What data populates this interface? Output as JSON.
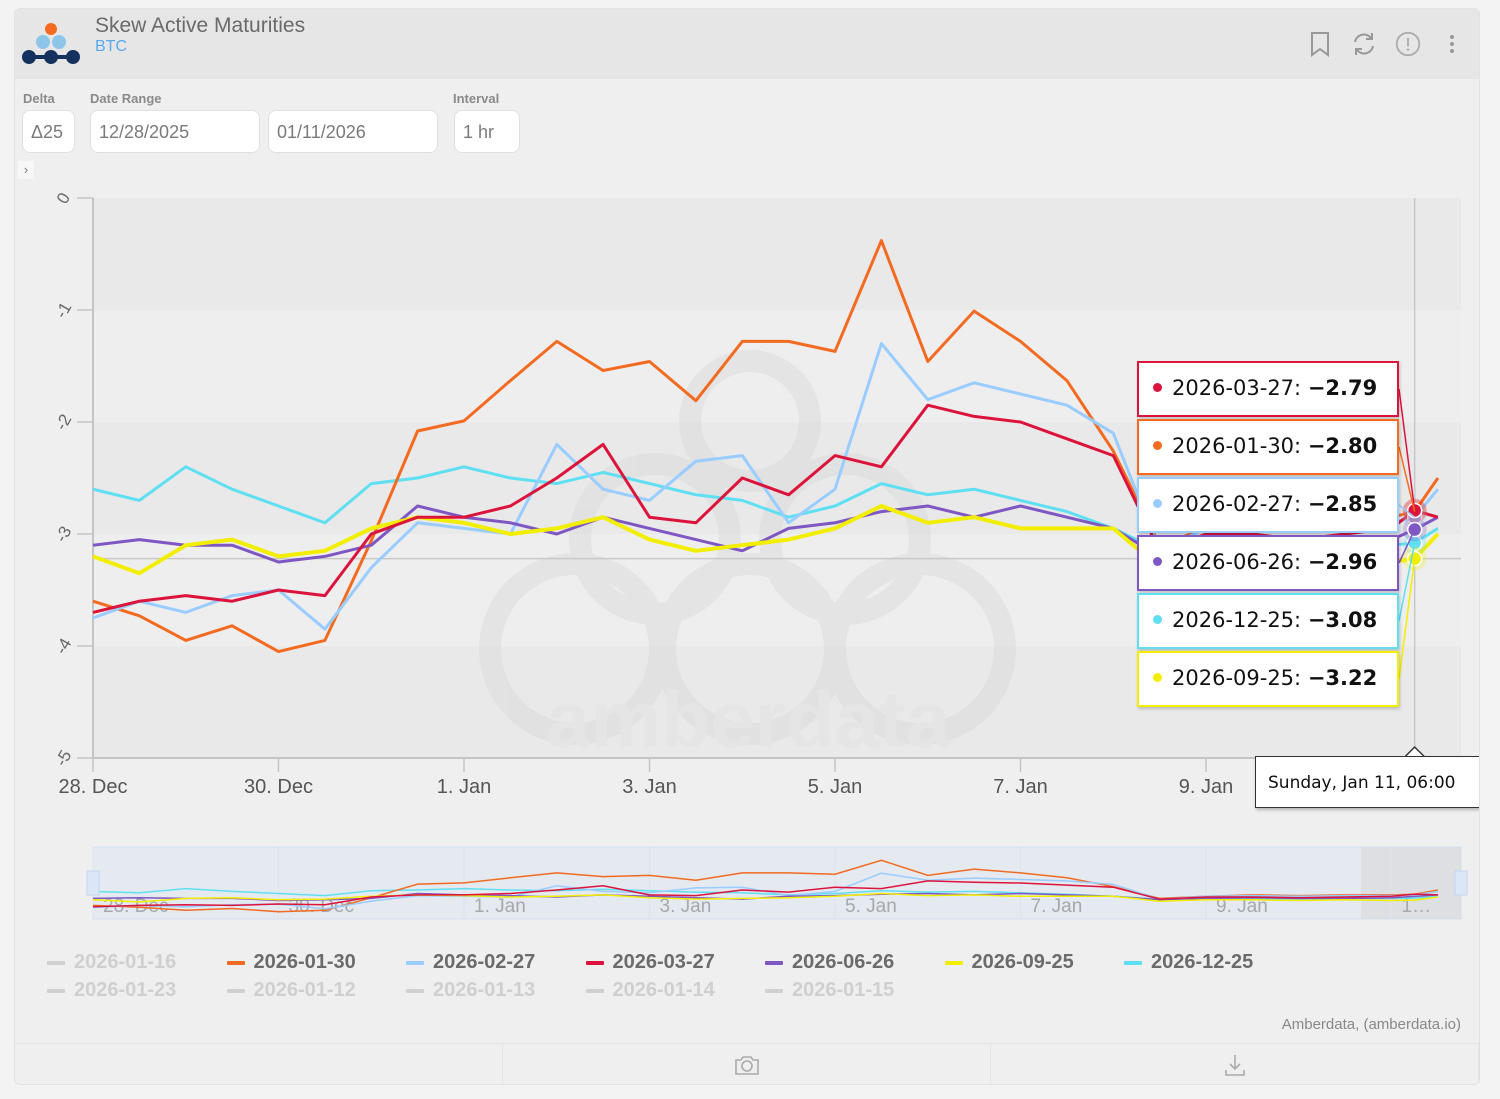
{
  "header": {
    "title": "Skew Active Maturities",
    "subtitle": "BTC",
    "icons": [
      "bookmark-icon",
      "refresh-icon",
      "alert-icon",
      "more-vertical-icon"
    ]
  },
  "controls": {
    "delta_label": "Delta",
    "delta_value": "Δ25",
    "date_range_label": "Date Range",
    "start_date": "12/28/2025",
    "end_date": "01/11/2026",
    "interval_label": "Interval",
    "interval_value": "1 hr",
    "expand": "›"
  },
  "watermark": "amberdata",
  "chart_data": {
    "type": "line",
    "ylim": [
      -5,
      0
    ],
    "yticks": [
      "0",
      "-1",
      "-2",
      "-3",
      "-4",
      "-5"
    ],
    "xticks": [
      {
        "label": "28. Dec",
        "t": "2025-12-28 00:00"
      },
      {
        "label": "30. Dec",
        "t": "2025-12-30 00:00"
      },
      {
        "label": "1. Jan",
        "t": "2026-01-01 00:00"
      },
      {
        "label": "3. Jan",
        "t": "2026-01-03 00:00"
      },
      {
        "label": "5. Jan",
        "t": "2026-01-05 00:00"
      },
      {
        "label": "7. Jan",
        "t": "2026-01-07 00:00"
      },
      {
        "label": "9. Jan",
        "t": "2026-01-09 00:00"
      }
    ],
    "navigator_xticks": [
      "28. Dec",
      "30. Dec",
      "1. Jan",
      "3. Jan",
      "5. Jan",
      "7. Jan",
      "9. Jan",
      "1…"
    ],
    "x": [
      "2025-12-28 00:00",
      "2025-12-28 12:00",
      "2025-12-29 00:00",
      "2025-12-29 12:00",
      "2025-12-30 00:00",
      "2025-12-30 12:00",
      "2025-12-31 00:00",
      "2025-12-31 12:00",
      "2026-01-01 00:00",
      "2026-01-01 12:00",
      "2026-01-02 00:00",
      "2026-01-02 12:00",
      "2026-01-03 00:00",
      "2026-01-03 12:00",
      "2026-01-04 00:00",
      "2026-01-04 12:00",
      "2026-01-05 00:00",
      "2026-01-05 12:00",
      "2026-01-06 00:00",
      "2026-01-06 12:00",
      "2026-01-07 00:00",
      "2026-01-07 12:00",
      "2026-01-08 00:00",
      "2026-01-08 12:00",
      "2026-01-09 00:00",
      "2026-01-09 12:00",
      "2026-01-10 00:00",
      "2026-01-10 12:00",
      "2026-01-11 00:00",
      "2026-01-11 06:00",
      "2026-01-11 12:00"
    ],
    "series": [
      {
        "name": "2026-12-25",
        "color": "#5fe0f2",
        "values": [
          -2.6,
          -2.7,
          -2.4,
          -2.6,
          -2.75,
          -2.9,
          -2.55,
          -2.5,
          -2.4,
          -2.5,
          -2.55,
          -2.45,
          -2.55,
          -2.65,
          -2.7,
          -2.85,
          -2.75,
          -2.55,
          -2.65,
          -2.6,
          -2.7,
          -2.8,
          -2.95,
          -3.15,
          -3.1,
          -3.1,
          -3.15,
          -3.1,
          -3.1,
          -3.08,
          -2.95
        ]
      },
      {
        "name": "2026-01-30",
        "color": "#f26b21",
        "values": [
          -3.6,
          -3.73,
          -3.95,
          -3.82,
          -4.05,
          -3.95,
          -3.06,
          -2.08,
          -1.99,
          -1.63,
          -1.28,
          -1.54,
          -1.46,
          -1.81,
          -1.28,
          -1.28,
          -1.37,
          -0.38,
          -1.46,
          -1.01,
          -1.28,
          -1.63,
          -2.26,
          -3.1,
          -2.95,
          -2.85,
          -2.9,
          -2.85,
          -2.85,
          -2.8,
          -2.5
        ]
      },
      {
        "name": "2026-02-27",
        "color": "#99ccff",
        "values": [
          -3.75,
          -3.6,
          -3.7,
          -3.55,
          -3.5,
          -3.85,
          -3.3,
          -2.9,
          -2.95,
          -3.0,
          -2.2,
          -2.6,
          -2.7,
          -2.35,
          -2.3,
          -2.9,
          -2.6,
          -1.3,
          -1.8,
          -1.65,
          -1.75,
          -1.85,
          -2.1,
          -3.15,
          -2.95,
          -2.9,
          -2.95,
          -2.9,
          -2.9,
          -2.85,
          -2.6
        ]
      },
      {
        "name": "2026-06-26",
        "color": "#7e57c2",
        "values": [
          -3.1,
          -3.05,
          -3.1,
          -3.1,
          -3.25,
          -3.2,
          -3.1,
          -2.75,
          -2.85,
          -2.9,
          -3.0,
          -2.85,
          -2.95,
          -3.05,
          -3.15,
          -2.95,
          -2.9,
          -2.8,
          -2.75,
          -2.85,
          -2.75,
          -2.85,
          -2.95,
          -3.2,
          -3.1,
          -3.05,
          -3.1,
          -3.1,
          -3.05,
          -2.96,
          -2.85
        ]
      },
      {
        "name": "2026-09-25",
        "color": "#f2ee00",
        "values": [
          -3.2,
          -3.35,
          -3.1,
          -3.05,
          -3.2,
          -3.15,
          -2.95,
          -2.85,
          -2.9,
          -3.0,
          -2.95,
          -2.85,
          -3.05,
          -3.15,
          -3.1,
          -3.05,
          -2.95,
          -2.75,
          -2.9,
          -2.85,
          -2.95,
          -2.95,
          -2.95,
          -3.3,
          -3.2,
          -3.2,
          -3.25,
          -3.2,
          -3.25,
          -3.22,
          -3.0
        ]
      },
      {
        "name": "2026-03-27",
        "color": "#dc143c",
        "values": [
          -3.7,
          -3.6,
          -3.55,
          -3.6,
          -3.5,
          -3.55,
          -3.0,
          -2.85,
          -2.85,
          -2.75,
          -2.5,
          -2.2,
          -2.85,
          -2.9,
          -2.5,
          -2.65,
          -2.3,
          -2.4,
          -1.85,
          -1.95,
          -2.0,
          -2.15,
          -2.3,
          -3.15,
          -3.0,
          -3.0,
          -3.05,
          -3.0,
          -2.95,
          -2.79,
          -2.85
        ]
      }
    ],
    "crosshair": {
      "x": "2026-01-11 06:00",
      "y": -3.22
    },
    "tooltip": {
      "date": "Sunday, Jan 11, 06:00",
      "rows": [
        {
          "name": "2026-03-27",
          "value": "−2.79",
          "color": "#dc143c"
        },
        {
          "name": "2026-01-30",
          "value": "−2.80",
          "color": "#f26b21"
        },
        {
          "name": "2026-02-27",
          "value": "−2.85",
          "color": "#99ccff"
        },
        {
          "name": "2026-06-26",
          "value": "−2.96",
          "color": "#7e57c2"
        },
        {
          "name": "2026-12-25",
          "value": "−3.08",
          "color": "#5fe0f2"
        },
        {
          "name": "2026-09-25",
          "value": "−3.22",
          "color": "#f2ee00"
        }
      ]
    },
    "legend": [
      {
        "name": "2026-01-16",
        "visible": false
      },
      {
        "name": "2026-01-30",
        "visible": true,
        "color": "#f26b21"
      },
      {
        "name": "2026-02-27",
        "visible": true,
        "color": "#99ccff"
      },
      {
        "name": "2026-03-27",
        "visible": true,
        "color": "#dc143c"
      },
      {
        "name": "2026-06-26",
        "visible": true,
        "color": "#7e57c2"
      },
      {
        "name": "2026-09-25",
        "visible": true,
        "color": "#f2ee00"
      },
      {
        "name": "2026-12-25",
        "visible": true,
        "color": "#5fe0f2"
      },
      {
        "name": "2026-01-23",
        "visible": false
      },
      {
        "name": "2026-01-12",
        "visible": false
      },
      {
        "name": "2026-01-13",
        "visible": false
      },
      {
        "name": "2026-01-14",
        "visible": false
      },
      {
        "name": "2026-01-15",
        "visible": false
      }
    ],
    "legend_placement": "bottom"
  },
  "credit": "Amberdata, (amberdata.io)",
  "toolbar": {
    "icons": [
      "camera-icon",
      "download-icon"
    ]
  }
}
